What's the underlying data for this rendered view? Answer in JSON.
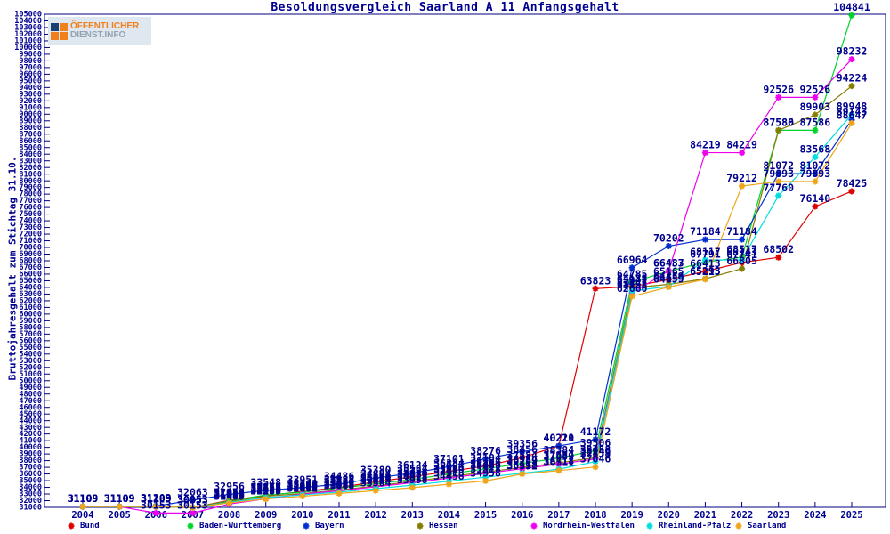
{
  "page": {
    "title": "Besoldungsvergleich Saarland A 11 Anfangsgehalt"
  },
  "logo": {
    "line1": "ÖFFENTLICHER",
    "line2": "DIENST.INFO"
  },
  "axes": {
    "y_label": "Bruttojahresgehalt zum Stichtag 31.10.",
    "y_min": 31000,
    "y_max": 105000,
    "y_step": 1000
  },
  "colors": {
    "frame": "#000080",
    "text": "#000090",
    "background": "#ffffff"
  },
  "chart_data": {
    "type": "line",
    "title": "Besoldungsvergleich Saarland A 11 Anfangsgehalt",
    "xlabel": "",
    "ylabel": "Bruttojahresgehalt zum Stichtag 31.10.",
    "ylim": [
      31000,
      105000
    ],
    "grid": false,
    "legend_position": "bottom",
    "point_labels": true,
    "x": [
      2004,
      2005,
      2006,
      2007,
      2008,
      2009,
      2010,
      2011,
      2012,
      2013,
      2014,
      2015,
      2016,
      2017,
      2018,
      2019,
      2020,
      2021,
      2022,
      2023,
      2024,
      2025
    ],
    "series": [
      {
        "name": "Bund",
        "color": "#e00000",
        "values": [
          31109,
          31109,
          31109,
          30953,
          32058,
          32758,
          33362,
          33988,
          34804,
          35584,
          36384,
          37184,
          38456,
          40221,
          63823,
          64135,
          65165,
          66413,
          67741,
          68502,
          76140,
          78425
        ]
      },
      {
        "name": "Baden-Württemberg",
        "color": "#00d42a",
        "values": [
          31109,
          31109,
          31109,
          30953,
          31958,
          32858,
          33262,
          33888,
          34504,
          35184,
          35984,
          36784,
          37584,
          38384,
          39506,
          64785,
          66433,
          67791,
          68517,
          87586,
          87586,
          104841
        ]
      },
      {
        "name": "Bayern",
        "color": "#0030d0",
        "values": [
          31109,
          31109,
          31203,
          32063,
          32956,
          33548,
          33951,
          34486,
          35380,
          36124,
          37101,
          38276,
          39356,
          40210,
          41172,
          66964,
          70202,
          71184,
          71184,
          81072,
          81072,
          89143
        ]
      },
      {
        "name": "Hessen",
        "color": "#857d00",
        "values": [
          31109,
          31109,
          31109,
          30953,
          31858,
          32658,
          33062,
          33588,
          34204,
          34884,
          35584,
          36284,
          36984,
          37684,
          38458,
          63947,
          64459,
          65293,
          66805,
          87580,
          89903,
          94224
        ]
      },
      {
        "name": "Nordrhein-Westfalen",
        "color": "#ee00ee",
        "values": [
          31109,
          31109,
          30153,
          30153,
          31489,
          32289,
          32989,
          33489,
          34089,
          34689,
          35389,
          36089,
          36789,
          37489,
          38246,
          63158,
          66487,
          84219,
          84219,
          92526,
          92526,
          98232
        ]
      },
      {
        "name": "Rheinland-Pfalz",
        "color": "#00dede",
        "values": [
          31109,
          31109,
          31109,
          30953,
          31758,
          32458,
          32862,
          33288,
          33804,
          34318,
          34918,
          35518,
          36118,
          36718,
          37858,
          63447,
          64159,
          68117,
          68143,
          77760,
          83568,
          89948
        ]
      },
      {
        "name": "Saarland",
        "color": "#f0a418",
        "values": [
          31109,
          31109,
          31109,
          30953,
          31658,
          32258,
          32662,
          33088,
          33504,
          33958,
          34458,
          34958,
          35992,
          36511,
          37046,
          62660,
          64059,
          65215,
          79212,
          79893,
          79893,
          88647
        ]
      }
    ]
  }
}
